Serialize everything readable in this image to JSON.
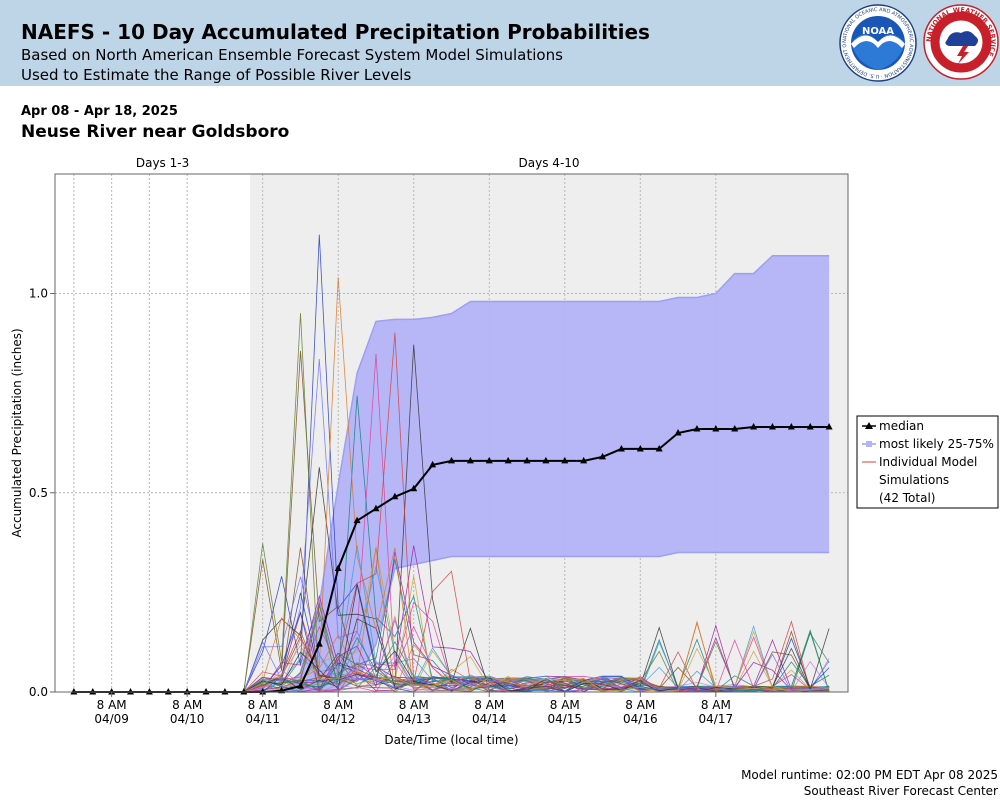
{
  "header": {
    "title": "NAEFS - 10 Day Accumulated Precipitation Probabilities",
    "subtitle1": "Based on North American Ensemble Forecast System Model Simulations",
    "subtitle2": "Used to Estimate the Range of Possible River Levels",
    "noaa_logo_text": "NOAA",
    "noaa_ring_text": "NATIONAL OCEANIC AND ATMOSPHERIC ADMINISTRATION · U.S. DEPARTMENT OF COMMERCE",
    "nws_ring_text": "NATIONAL WEATHER SERVICE"
  },
  "date_range": "Apr 08 - Apr 18, 2025",
  "location": "Neuse River near Goldsboro",
  "footer": {
    "runtime": "Model runtime: 02:00 PM EDT Apr 08 2025",
    "center": "Southeast River Forecast Center"
  },
  "colors": {
    "header_bg": "#bed5e8",
    "band_fill": "#b3b3f7",
    "band_edge": "#9e9ef2",
    "median": "#000000",
    "days4_10_bg": "#eeeeee"
  },
  "chart_data": {
    "type": "line",
    "xlabel": "Date/Time (local time)",
    "ylabel": "Accumulated Precipitation (inches)",
    "ylim": [
      0,
      1.3
    ],
    "yticks": [
      "0.0",
      "0.5",
      "1.0"
    ],
    "x_ticks": [
      {
        "time": "8 AM",
        "date": "04/09"
      },
      {
        "time": "8 AM",
        "date": "04/10"
      },
      {
        "time": "8 AM",
        "date": "04/11"
      },
      {
        "time": "8 AM",
        "date": "04/12"
      },
      {
        "time": "8 AM",
        "date": "04/13"
      },
      {
        "time": "8 AM",
        "date": "04/14"
      },
      {
        "time": "8 AM",
        "date": "04/15"
      },
      {
        "time": "8 AM",
        "date": "04/16"
      },
      {
        "time": "8 AM",
        "date": "04/17"
      }
    ],
    "x_hours_from_first_point": [
      0,
      6,
      12,
      18,
      24,
      30,
      36,
      42,
      48,
      54,
      60,
      66,
      72,
      78,
      84,
      90,
      96,
      102,
      108,
      114,
      120,
      126,
      132,
      138,
      144,
      150,
      156,
      162,
      168,
      174,
      180,
      186,
      192,
      198,
      204,
      210,
      216,
      222,
      228,
      234,
      240
    ],
    "median": [
      0,
      0,
      0,
      0,
      0,
      0,
      0,
      0,
      0,
      0,
      0,
      0.003,
      0.015,
      0.12,
      0.31,
      0.43,
      0.46,
      0.49,
      0.51,
      0.57,
      0.58,
      0.58,
      0.58,
      0.58,
      0.58,
      0.58,
      0.58,
      0.58,
      0.59,
      0.61,
      0.61,
      0.61,
      0.65,
      0.66,
      0.66,
      0.66,
      0.665,
      0.665,
      0.665,
      0.665,
      0.665
    ],
    "p25": [
      0,
      0,
      0,
      0,
      0,
      0,
      0,
      0,
      0,
      0,
      0,
      0,
      0,
      0,
      0.005,
      0.03,
      0.12,
      0.31,
      0.32,
      0.33,
      0.34,
      0.34,
      0.34,
      0.34,
      0.34,
      0.34,
      0.34,
      0.34,
      0.34,
      0.34,
      0.34,
      0.34,
      0.35,
      0.35,
      0.35,
      0.35,
      0.35,
      0.35,
      0.35,
      0.35,
      0.35
    ],
    "p75": [
      0,
      0,
      0,
      0,
      0,
      0,
      0,
      0,
      0,
      0,
      0,
      0,
      0.05,
      0.22,
      0.52,
      0.8,
      0.93,
      0.935,
      0.935,
      0.94,
      0.95,
      0.98,
      0.98,
      0.98,
      0.98,
      0.98,
      0.98,
      0.98,
      0.98,
      0.98,
      0.98,
      0.98,
      0.99,
      0.99,
      1.0,
      1.05,
      1.05,
      1.095,
      1.095,
      1.095,
      1.095
    ],
    "sections": [
      {
        "label": "Days 1-3"
      },
      {
        "label": "Days 4-10"
      }
    ],
    "days4_10_start_hours": 56,
    "grid": true,
    "legend": {
      "position": "right",
      "entries": [
        {
          "label": "median",
          "color": "#000000"
        },
        {
          "label": "most likely 25-75%",
          "color": "#b3b3f7"
        },
        {
          "label": "Individual Model Simulations",
          "line1": "Individual Model",
          "line2": "Simulations",
          "line3": "(42 Total)",
          "color": "#d04040"
        }
      ]
    },
    "simulation_count": 42,
    "simulation_colors": [
      "#d04040",
      "#2e8b57",
      "#1f3cba",
      "#9b1fa8",
      "#e03e9c",
      "#7a4a1e",
      "#3a9bd6",
      "#5b7d2e",
      "#c77fe0",
      "#0f7f7f",
      "#d6772a",
      "#333333",
      "#6f6fff",
      "#c9a13b"
    ]
  }
}
